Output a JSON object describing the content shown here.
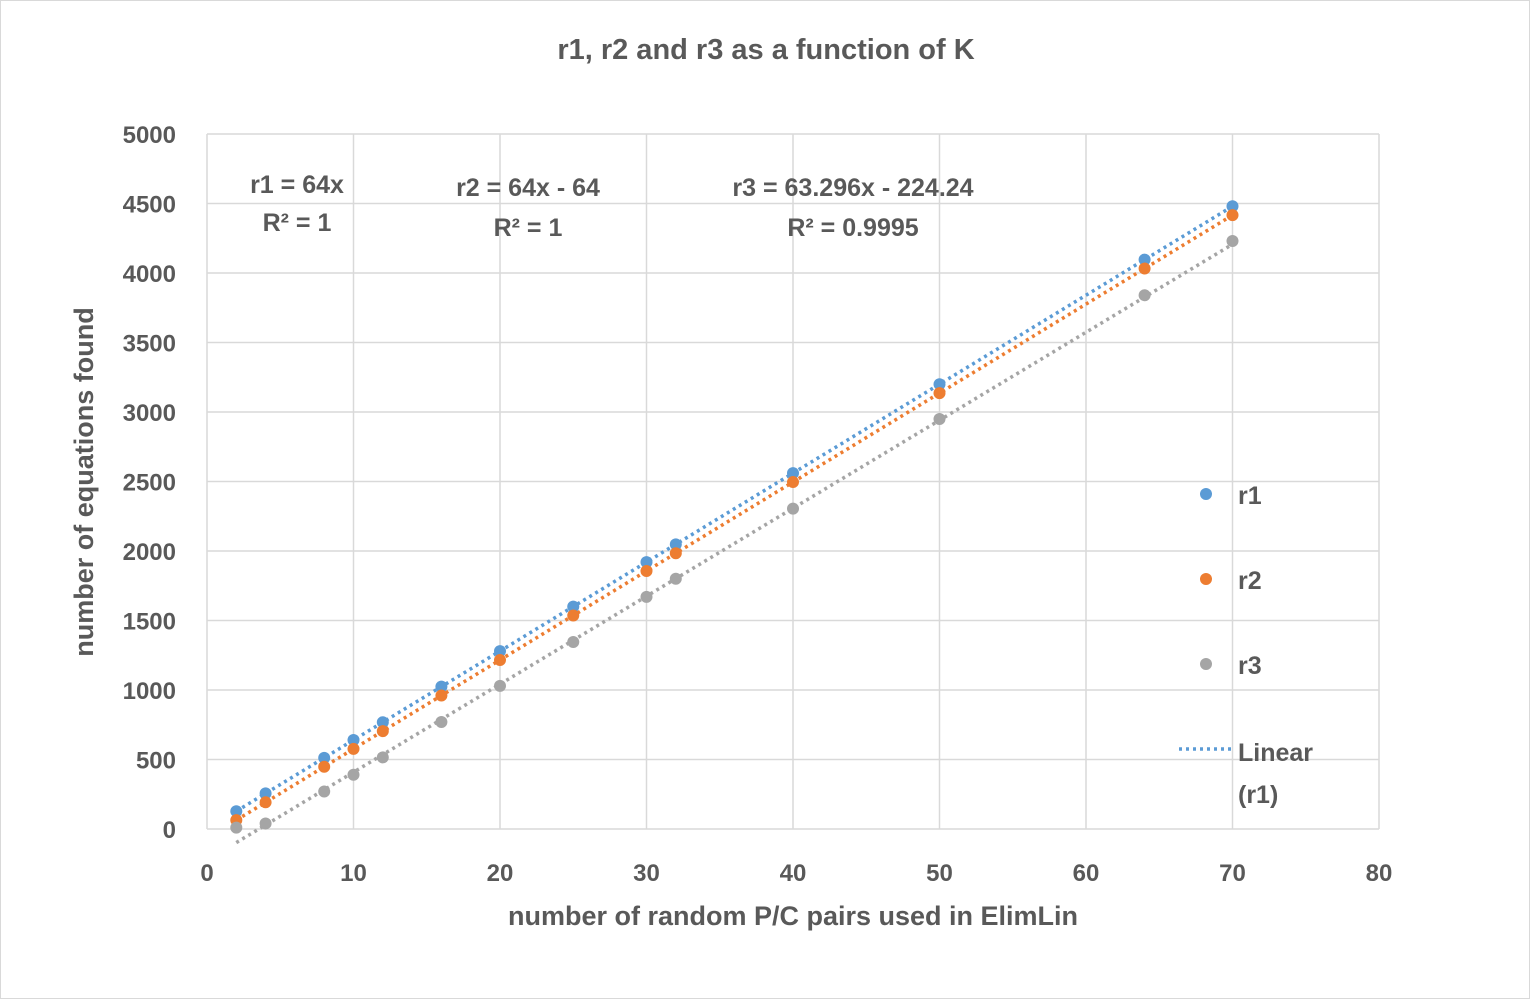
{
  "chart_data": {
    "type": "scatter",
    "title": "r1, r2 and r3 as a function of K",
    "xlabel": "number of random P/C pairs used in ElimLin",
    "ylabel": "number of equations found",
    "xlim": [
      0,
      80
    ],
    "ylim": [
      0,
      5000
    ],
    "x_ticks": [
      "0",
      "10",
      "20",
      "30",
      "40",
      "50",
      "60",
      "70",
      "80"
    ],
    "y_ticks": [
      "0",
      "500",
      "1000",
      "1500",
      "2000",
      "2500",
      "3000",
      "3500",
      "4000",
      "4500",
      "5000"
    ],
    "grid": true,
    "legend_position": "right",
    "series": [
      {
        "name": "r1",
        "color": "#5b9bd5",
        "x": [
          2,
          4,
          8,
          10,
          12,
          16,
          20,
          25,
          30,
          32,
          40,
          50,
          64,
          70
        ],
        "y": [
          128,
          256,
          512,
          640,
          768,
          1024,
          1280,
          1600,
          1920,
          2048,
          2560,
          3200,
          4096,
          4480
        ]
      },
      {
        "name": "r2",
        "color": "#ed7d31",
        "x": [
          2,
          4,
          8,
          10,
          12,
          16,
          20,
          25,
          30,
          32,
          40,
          50,
          64,
          70
        ],
        "y": [
          64,
          192,
          448,
          576,
          704,
          960,
          1216,
          1536,
          1856,
          1984,
          2496,
          3136,
          4032,
          4416
        ]
      },
      {
        "name": "r3",
        "color": "#a5a5a5",
        "x": [
          2,
          4,
          8,
          10,
          12,
          16,
          20,
          25,
          30,
          32,
          40,
          50,
          64,
          70
        ],
        "y": [
          10,
          40,
          270,
          390,
          515,
          770,
          1030,
          1345,
          1670,
          1800,
          2305,
          2950,
          3840,
          4230
        ]
      }
    ],
    "trendlines": [
      {
        "label": "Linear (r1)",
        "series": "r1",
        "color": "#5b9bd5",
        "slope": 64,
        "intercept": 0,
        "x_range": [
          2,
          70
        ],
        "legend": true
      },
      {
        "series": "r2",
        "color": "#ed7d31",
        "slope": 64,
        "intercept": -64,
        "x_range": [
          2,
          70
        ],
        "legend": false
      },
      {
        "series": "r3",
        "color": "#a5a5a5",
        "slope": 63.296,
        "intercept": -224.24,
        "x_range": [
          2,
          70
        ],
        "legend": false
      }
    ],
    "annotations": [
      {
        "line1": "r1 = 64x",
        "line2": "R² = 1"
      },
      {
        "line1": "r2 = 64x - 64",
        "line2": "R² = 1"
      },
      {
        "line1": "r3 = 63.296x - 224.24",
        "line2": "R² = 0.9995"
      }
    ],
    "legend": {
      "entries": [
        "r1",
        "r2",
        "r3"
      ],
      "trend_label_line1": "Linear",
      "trend_label_line2": "(r1)"
    }
  }
}
